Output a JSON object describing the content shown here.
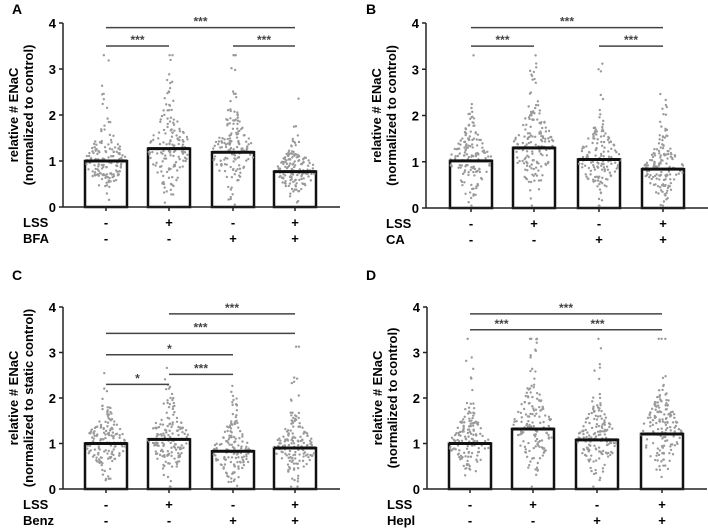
{
  "chart_data": [
    {
      "type": "bar",
      "panel": "A",
      "ylabel": [
        "relative # ENaC",
        "(normalized to control)"
      ],
      "ylim": [
        0,
        4
      ],
      "yticks": [
        "0",
        "1",
        "2",
        "3",
        "4"
      ],
      "rows": [
        {
          "label": "LSS",
          "values": [
            "-",
            "+",
            "-",
            "+"
          ]
        },
        {
          "label": "BFA",
          "values": [
            "-",
            "-",
            "+",
            "+"
          ]
        }
      ],
      "values": [
        1.0,
        1.27,
        1.19,
        0.77
      ],
      "significance": [
        {
          "from": 1,
          "to": 4,
          "y": 3.9,
          "label": "***"
        },
        {
          "from": 1,
          "to": 2,
          "y": 3.5,
          "label": "***"
        },
        {
          "from": 3,
          "to": 4,
          "y": 3.5,
          "label": "***"
        }
      ]
    },
    {
      "type": "bar",
      "panel": "B",
      "ylabel": [
        "relative # ENaC",
        "(normalized to control)"
      ],
      "ylim": [
        0,
        4
      ],
      "yticks": [
        "0",
        "1",
        "2",
        "3",
        "4"
      ],
      "rows": [
        {
          "label": "LSS",
          "values": [
            "-",
            "+",
            "-",
            "+"
          ]
        },
        {
          "label": "CA",
          "values": [
            "-",
            "-",
            "+",
            "+"
          ]
        }
      ],
      "values": [
        1.02,
        1.3,
        1.05,
        0.84
      ],
      "significance": [
        {
          "from": 1,
          "to": 4,
          "y": 3.9,
          "label": "***"
        },
        {
          "from": 1,
          "to": 2,
          "y": 3.5,
          "label": "***"
        },
        {
          "from": 3,
          "to": 4,
          "y": 3.5,
          "label": "***"
        }
      ]
    },
    {
      "type": "bar",
      "panel": "C",
      "ylabel": [
        "relative # ENaC",
        "(normalized to static control)"
      ],
      "ylim": [
        0,
        4
      ],
      "yticks": [
        "0",
        "1",
        "2",
        "3",
        "4"
      ],
      "rows": [
        {
          "label": "LSS",
          "values": [
            "-",
            "+",
            "-",
            "+"
          ]
        },
        {
          "label": "Benz",
          "values": [
            "-",
            "-",
            "+",
            "+"
          ]
        }
      ],
      "values": [
        1.0,
        1.09,
        0.83,
        0.9
      ],
      "significance": [
        {
          "from": 2,
          "to": 4,
          "y": 3.85,
          "label": "***"
        },
        {
          "from": 1,
          "to": 4,
          "y": 3.42,
          "label": "***"
        },
        {
          "from": 1,
          "to": 3,
          "y": 2.95,
          "label": "*"
        },
        {
          "from": 2,
          "to": 3,
          "y": 2.52,
          "label": "***"
        },
        {
          "from": 1,
          "to": 2,
          "y": 2.3,
          "label": "*"
        }
      ]
    },
    {
      "type": "bar",
      "panel": "D",
      "ylabel": [
        "relative # ENaC",
        "(normalized to control)"
      ],
      "ylim": [
        0,
        4
      ],
      "yticks": [
        "0",
        "1",
        "2",
        "3",
        "4"
      ],
      "rows": [
        {
          "label": "LSS",
          "values": [
            "-",
            "+",
            "-",
            "+"
          ]
        },
        {
          "label": "Hepl",
          "values": [
            "-",
            "-",
            "+",
            "+"
          ]
        }
      ],
      "values": [
        1.0,
        1.32,
        1.08,
        1.21
      ],
      "significance": [
        {
          "from": 1,
          "to": 4,
          "y": 3.85,
          "label": "***"
        },
        {
          "from": 1,
          "to": 2,
          "y": 3.5,
          "label": "***"
        },
        {
          "from": 2,
          "to": 4,
          "y": 3.5,
          "label": "***"
        }
      ]
    }
  ]
}
